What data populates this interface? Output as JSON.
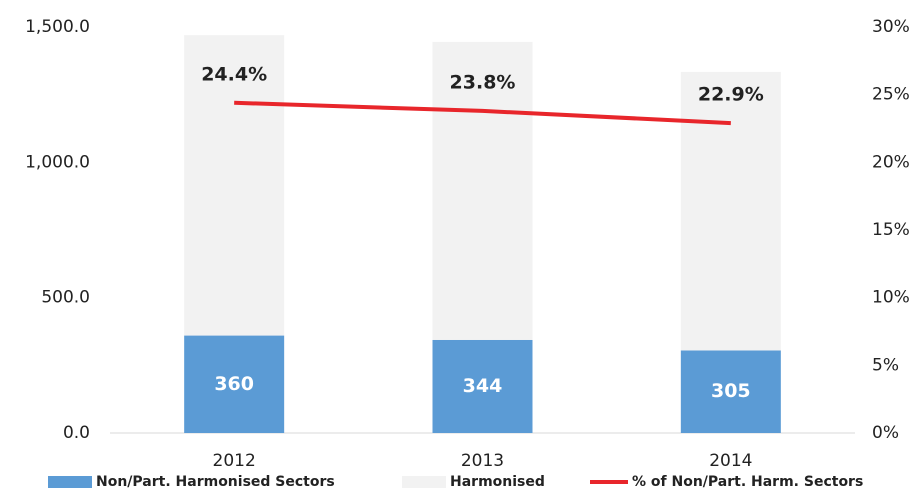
{
  "chart_data": {
    "type": "bar",
    "stacked": true,
    "categories": [
      "2012",
      "2013",
      "2014"
    ],
    "series": [
      {
        "name": "Non/Part. Harmonised Sectors",
        "type": "bar",
        "color": "#5b9bd5",
        "values": [
          360,
          344,
          305
        ]
      },
      {
        "name": "Harmonised",
        "type": "bar",
        "color": "#f2f2f2",
        "values": [
          1110,
          1101,
          1029
        ]
      },
      {
        "name": "% of Non/Part. Harm. Sectors",
        "type": "line",
        "axis": "y2",
        "color": "#e8262b",
        "values": [
          24.4,
          23.8,
          22.9
        ],
        "value_labels": [
          "24.4%",
          "23.8%",
          "22.9%"
        ]
      }
    ],
    "ylim": [
      0,
      1500
    ],
    "yticks": [
      {
        "value": 0,
        "label": "0.0"
      },
      {
        "value": 500,
        "label": "500.0"
      },
      {
        "value": 1000,
        "label": "1,000.0"
      },
      {
        "value": 1500,
        "label": "1,500.0"
      }
    ],
    "y2lim": [
      0,
      30
    ],
    "y2ticks": [
      {
        "value": 0,
        "label": "0%"
      },
      {
        "value": 5,
        "label": "5%"
      },
      {
        "value": 10,
        "label": "10%"
      },
      {
        "value": 15,
        "label": "15%"
      },
      {
        "value": 20,
        "label": "20%"
      },
      {
        "value": 25,
        "label": "25%"
      },
      {
        "value": 30,
        "label": "30%"
      }
    ],
    "grid": false,
    "legend": "bottom"
  }
}
